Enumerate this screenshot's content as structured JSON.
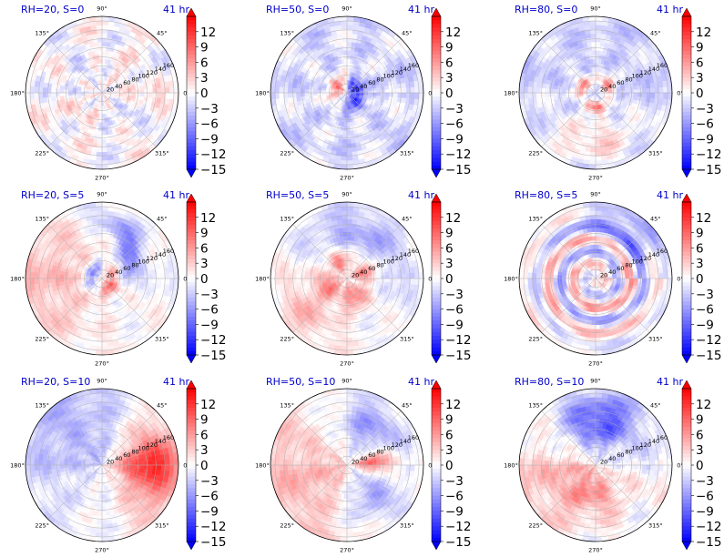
{
  "chart_data": {
    "type": "heatmap",
    "projection": "polar",
    "layout": "3x3 grid",
    "time_label": "41 hr",
    "theta_ticks": [
      "0°",
      "45°",
      "90°",
      "135°",
      "180°",
      "225°",
      "270°",
      "315°"
    ],
    "theta_tick_values_deg": [
      0,
      45,
      90,
      135,
      180,
      225,
      270,
      315
    ],
    "r_ticks": [
      "20",
      "40",
      "60",
      "80",
      "100",
      "120",
      "140",
      "160"
    ],
    "r_tick_values": [
      20,
      40,
      60,
      80,
      100,
      120,
      140,
      160
    ],
    "r_label_angle_deg": 22.5,
    "r_max": 170,
    "grid": true,
    "colormap": "bwr",
    "colors": {
      "min": "#0000ff",
      "mid": "#ffffff",
      "max": "#ff0000"
    },
    "colorbar": {
      "min": -15,
      "max": 15,
      "extend": "both",
      "ticks": [
        12,
        9,
        6,
        3,
        0,
        -3,
        -6,
        -9,
        -12,
        -15
      ],
      "tick_labels": [
        "12",
        "9",
        "6",
        "3",
        "0",
        "−3",
        "−6",
        "−9",
        "−12",
        "−15"
      ]
    },
    "panels": [
      {
        "title": "RH=20, S=0",
        "rh": 20,
        "s": 0,
        "pattern": "weak mixed noise, faint red ring"
      },
      {
        "title": "RH=50, S=0",
        "rh": 50,
        "s": 0,
        "pattern": "red/blue dipole near center, blue outer"
      },
      {
        "title": "RH=80, S=0",
        "rh": 80,
        "s": 0,
        "pattern": "strong red ring at r≈20-40, blue outer, red lower"
      },
      {
        "title": "RH=20, S=5",
        "rh": 20,
        "s": 5,
        "pattern": "red west, blue spiral east"
      },
      {
        "title": "RH=50, S=5",
        "rh": 50,
        "s": 5,
        "pattern": "blue north, red center and southwest"
      },
      {
        "title": "RH=80, S=5",
        "rh": 80,
        "s": 5,
        "pattern": "red spiral bands, blue northeast"
      },
      {
        "title": "RH=20, S=10",
        "rh": 20,
        "s": 10,
        "pattern": "blue west, strong red east quadrant"
      },
      {
        "title": "RH=50, S=10",
        "rh": 50,
        "s": 10,
        "pattern": "red west, blue north and southeast, red streaks east"
      },
      {
        "title": "RH=80, S=10",
        "rh": 80,
        "s": 10,
        "pattern": "strong blue north, red south"
      }
    ]
  }
}
